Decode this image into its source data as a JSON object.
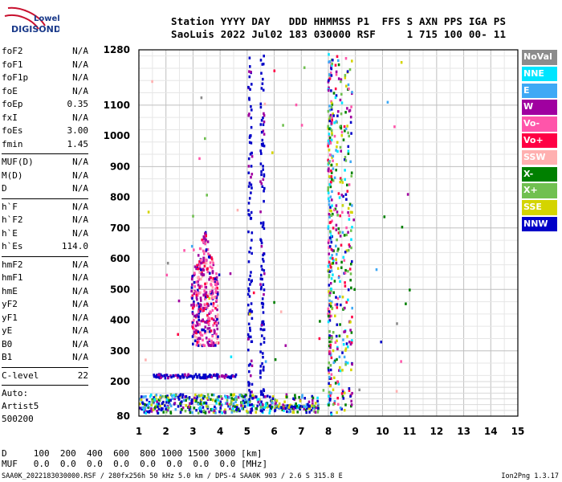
{
  "logo": {
    "line1": "Lowell",
    "line2": "DIGISONDE"
  },
  "header": {
    "line1": "Station YYYY DAY   DDD HHMMSS P1  FFS S AXN PPS IGA PS",
    "line2": "SaoLuis 2022 Jul02 183 030000 RSF     1 715 100 00- 11"
  },
  "params": {
    "group1": [
      {
        "name": "foF2",
        "value": "N/A"
      },
      {
        "name": "foF1",
        "value": "N/A"
      },
      {
        "name": "foF1p",
        "value": "N/A"
      },
      {
        "name": "foE",
        "value": "N/A"
      },
      {
        "name": "foEp",
        "value": "0.35"
      },
      {
        "name": "fxI",
        "value": "N/A"
      },
      {
        "name": "foEs",
        "value": "3.00"
      },
      {
        "name": "fmin",
        "value": "1.45"
      }
    ],
    "group2": [
      {
        "name": "MUF(D)",
        "value": "N/A"
      },
      {
        "name": "M(D)",
        "value": "N/A"
      },
      {
        "name": "D",
        "value": "N/A"
      }
    ],
    "group3": [
      {
        "name": "h`F",
        "value": "N/A"
      },
      {
        "name": "h`F2",
        "value": "N/A"
      },
      {
        "name": "h`E",
        "value": "N/A"
      },
      {
        "name": "h`Es",
        "value": "114.0"
      }
    ],
    "group4": [
      {
        "name": "hmF2",
        "value": "N/A"
      },
      {
        "name": "hmF1",
        "value": "N/A"
      },
      {
        "name": "hmE",
        "value": "N/A"
      },
      {
        "name": "yF2",
        "value": "N/A"
      },
      {
        "name": "yF1",
        "value": "N/A"
      },
      {
        "name": "yE",
        "value": "N/A"
      },
      {
        "name": "B0",
        "value": "N/A"
      },
      {
        "name": "B1",
        "value": "N/A"
      }
    ],
    "clevel": {
      "name": "C-level",
      "value": "22"
    },
    "auto": [
      "Auto:",
      "Artist5",
      "500200"
    ]
  },
  "legend": [
    {
      "label": "NoVal",
      "color": "#8c8c8c"
    },
    {
      "label": "NNE",
      "color": "#00e5ff"
    },
    {
      "label": "E",
      "color": "#3fa9f5"
    },
    {
      "label": "W",
      "color": "#a000a0"
    },
    {
      "label": "Vo-",
      "color": "#ff55aa"
    },
    {
      "label": "Vo+",
      "color": "#ff0044"
    },
    {
      "label": "SSW",
      "color": "#ffb0b0"
    },
    {
      "label": "X-",
      "color": "#008000"
    },
    {
      "label": "X+",
      "color": "#70c050"
    },
    {
      "label": "SSE",
      "color": "#d4d400"
    },
    {
      "label": "NNW",
      "color": "#0000c8"
    }
  ],
  "muf_table": {
    "d_row": "D     100  200  400  600  800 1000 1500 3000 [km]",
    "muf_row": "MUF   0.0  0.0  0.0  0.0  0.0  0.0  0.0  0.0 [MHz]"
  },
  "footer": {
    "left": "SAA0K_2022183030000.RSF / 280fx256h 50 kHz 5.0 km / DPS-4 SAA0K 903 / 2.6 S 315.8 E",
    "right": "Ion2Png 1.3.17"
  },
  "chart_data": {
    "type": "scatter",
    "title": "",
    "xlabel": "",
    "ylabel": "",
    "xlim": [
      1,
      15
    ],
    "ylim": [
      80,
      1280
    ],
    "x_ticks": [
      1,
      2,
      3,
      4,
      5,
      6,
      7,
      8,
      9,
      10,
      11,
      12,
      13,
      14,
      15
    ],
    "y_ticks": [
      80,
      200,
      300,
      400,
      500,
      600,
      700,
      800,
      900,
      1000,
      1100,
      1280
    ],
    "grid": true,
    "legend_position": "right",
    "clusters": [
      {
        "name": "Es trace",
        "x_range": [
          1.0,
          7.6
        ],
        "y_range": [
          95,
          160
        ],
        "color": "mixed",
        "n": 520
      },
      {
        "name": "blanket 220 km",
        "x_range": [
          1.5,
          4.6
        ],
        "y_range": [
          215,
          228
        ],
        "color": "#0000c8",
        "n": 110
      },
      {
        "name": "cluster 300-600 km",
        "x_range": [
          2.9,
          3.9
        ],
        "y_range": [
          300,
          600
        ],
        "color": "#a000a0",
        "n": 360
      },
      {
        "name": "interference 5 MHz",
        "x_range": [
          4.9,
          5.6
        ],
        "y_range": [
          80,
          1280
        ],
        "color": "#0000c8",
        "n": 220
      },
      {
        "name": "interference 8 MHz",
        "x_range": [
          7.9,
          8.9
        ],
        "y_range": [
          80,
          1280
        ],
        "color": "mixed",
        "n": 480
      }
    ]
  }
}
